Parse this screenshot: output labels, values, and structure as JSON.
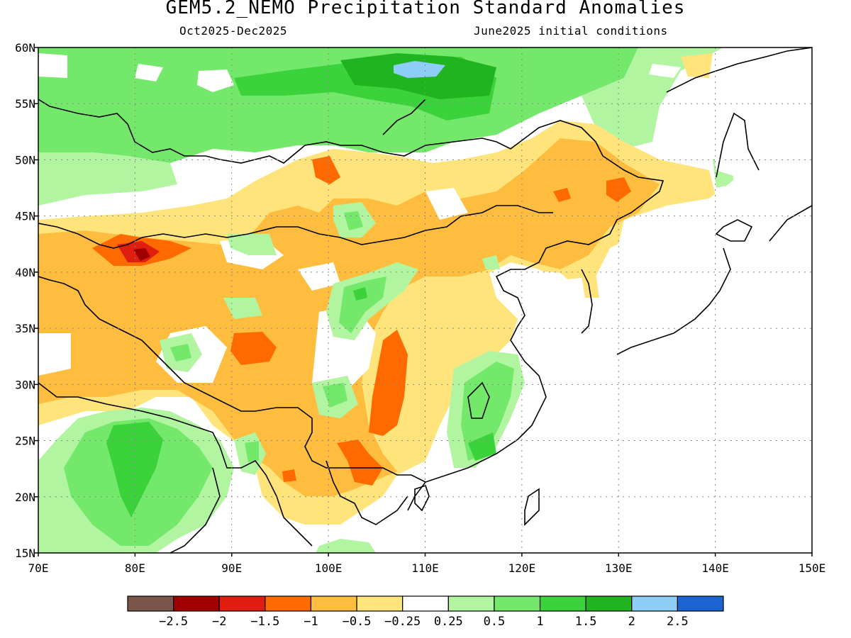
{
  "title": "GEM5.2_NEMO Precipitation Standard Anomalies",
  "subtitle_left": "Oct2025-Dec2025",
  "subtitle_right": "June2025 initial conditions",
  "map": {
    "lon_range": [
      70,
      150
    ],
    "lat_range": [
      15,
      60
    ],
    "lon_ticks": [
      "70E",
      "80E",
      "90E",
      "100E",
      "110E",
      "120E",
      "130E",
      "140E",
      "150E"
    ],
    "lat_ticks": [
      "15N",
      "20N",
      "25N",
      "30N",
      "35N",
      "40N",
      "45N",
      "50N",
      "55N",
      "60N"
    ],
    "grid": true
  },
  "colorbar": {
    "colors": [
      "#7a564a",
      "#a00000",
      "#e01e10",
      "#ff6a00",
      "#ffbd40",
      "#ffe47c",
      "#ffffff",
      "#b2f5a0",
      "#74e86a",
      "#3cd23c",
      "#20b420",
      "#8ecdf5",
      "#1c64d2"
    ],
    "labels": [
      "-2.5",
      "-2",
      "-1.5",
      "-1",
      "-0.5",
      "-0.25",
      "0.25",
      "0.5",
      "1",
      "1.5",
      "2",
      "2.5"
    ]
  }
}
